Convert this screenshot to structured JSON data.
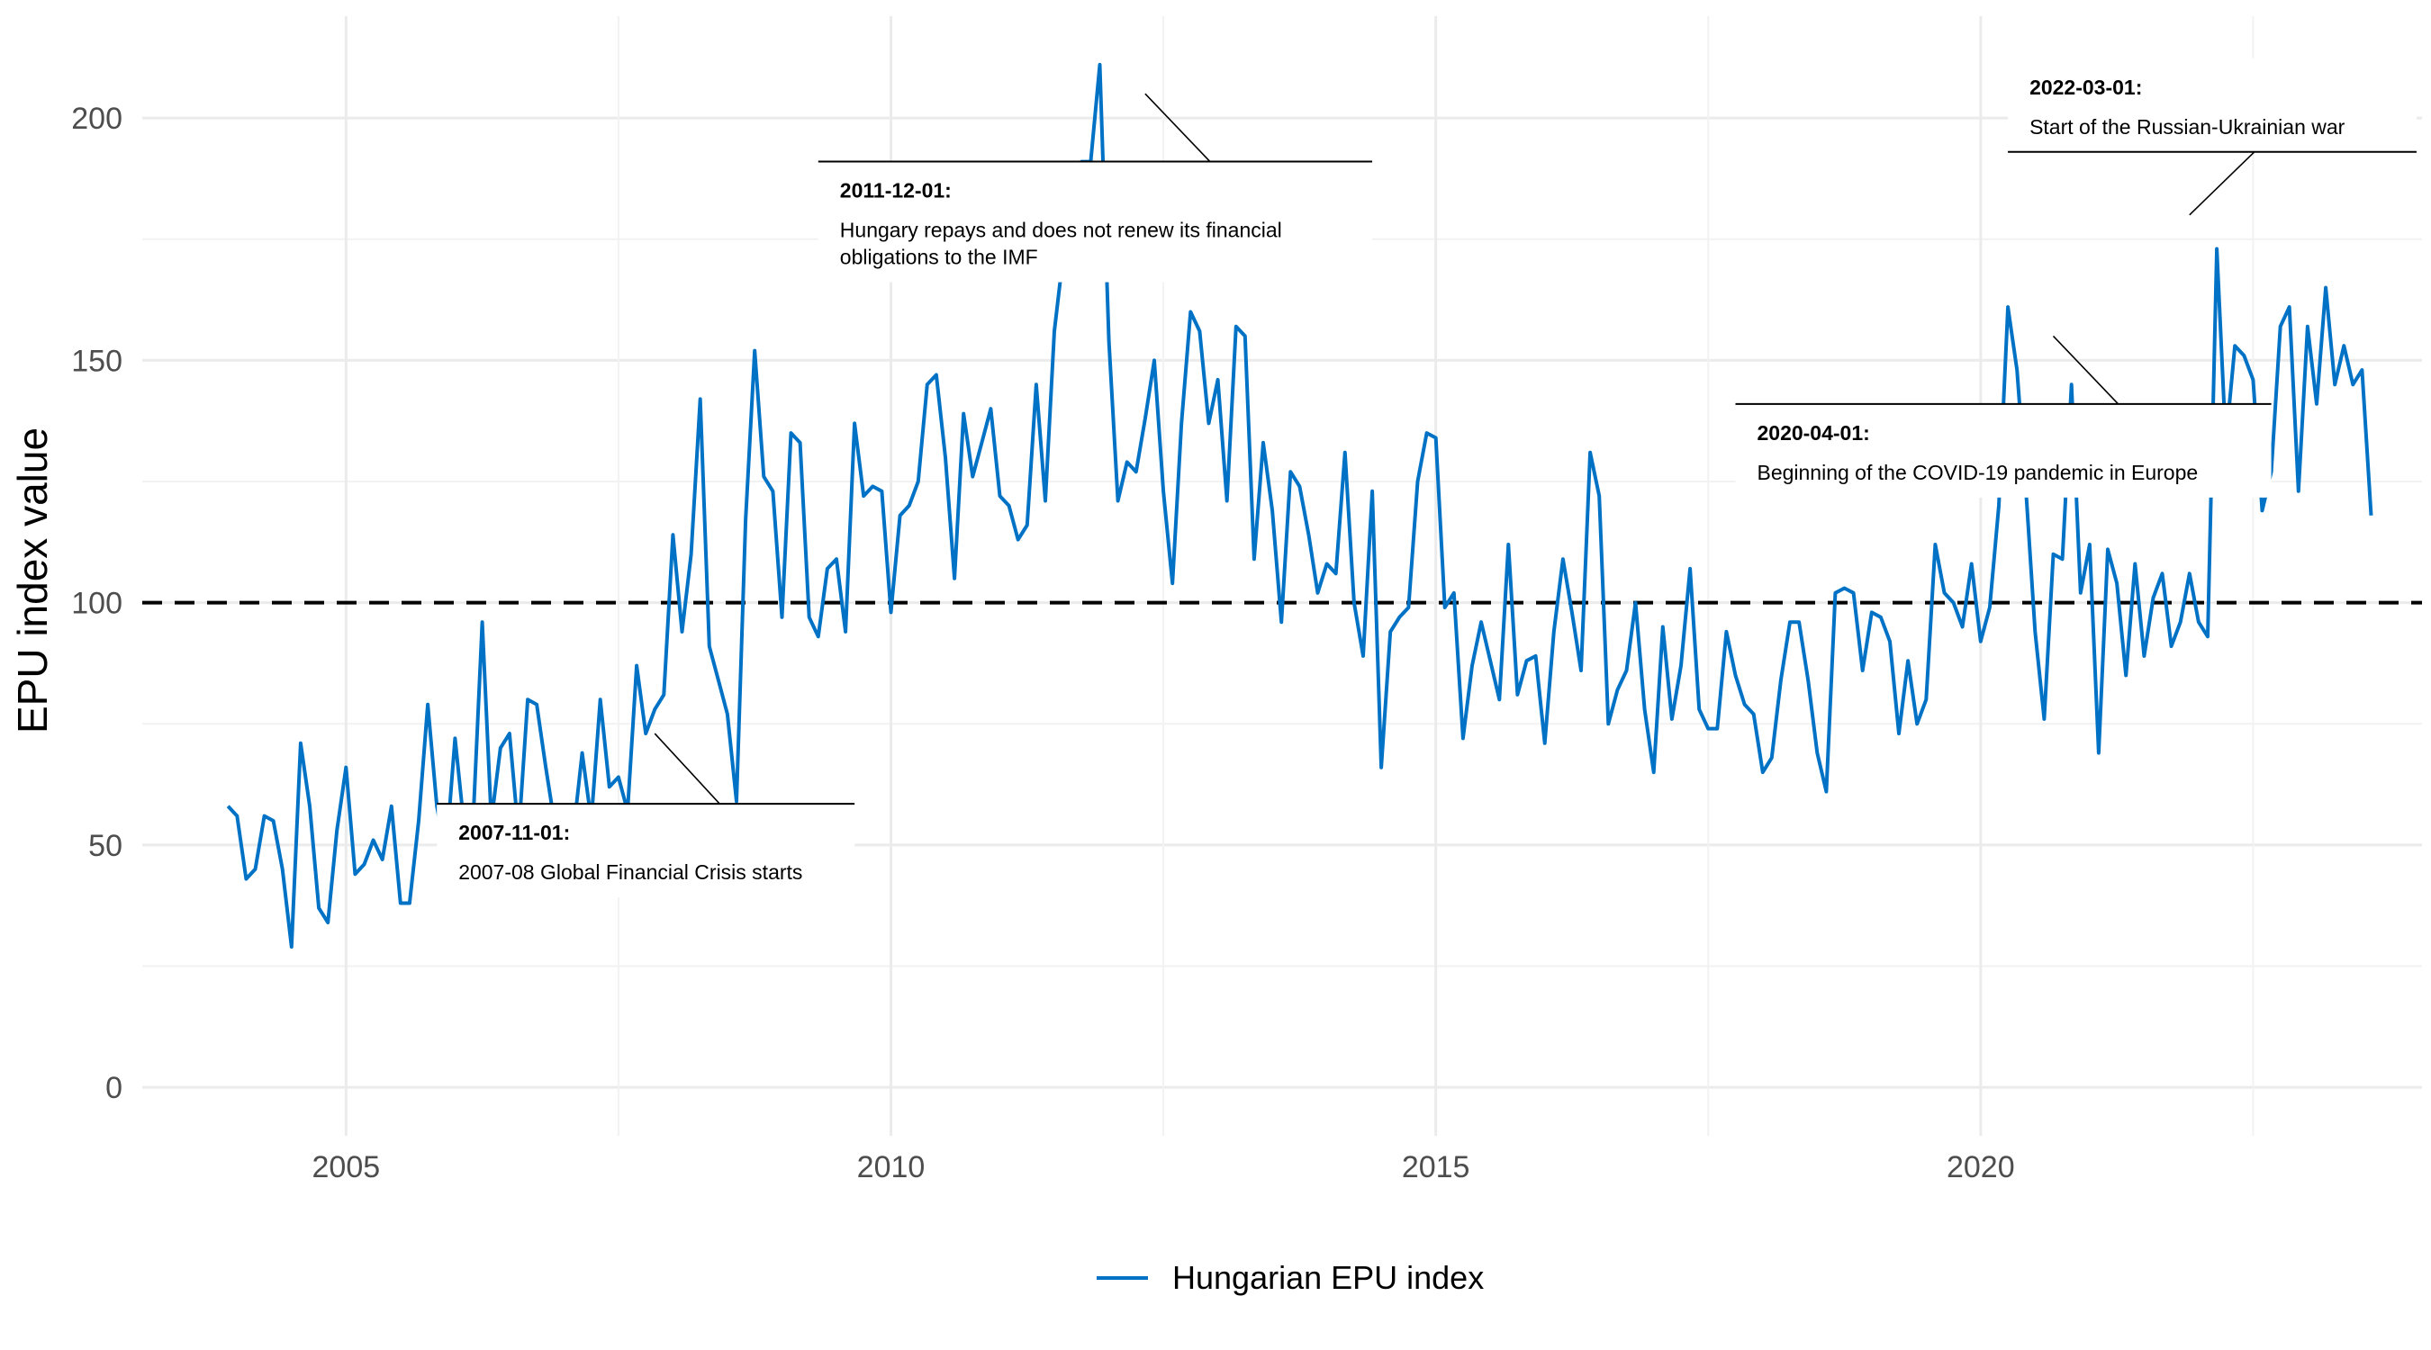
{
  "chart_data": {
    "type": "line",
    "xlabel": "",
    "ylabel": "EPU index value",
    "xlim": [
      2003.13,
      2024.05
    ],
    "ylim": [
      -10,
      221
    ],
    "x_ticks": [
      2005,
      2010,
      2015,
      2020
    ],
    "y_ticks": [
      0,
      50,
      100,
      150,
      200
    ],
    "grid": true,
    "reference_line": {
      "y": 100,
      "style": "dashed",
      "color": "#000000"
    },
    "legend": {
      "position": "bottom",
      "entries": [
        "Hungarian EPU index"
      ]
    },
    "series": [
      {
        "name": "Hungarian EPU index",
        "color": "#0072c6",
        "points": [
          [
            "2003-12",
            58
          ],
          [
            "2004-01",
            56
          ],
          [
            "2004-02",
            43
          ],
          [
            "2004-03",
            45
          ],
          [
            "2004-04",
            56
          ],
          [
            "2004-05",
            55
          ],
          [
            "2004-06",
            45
          ],
          [
            "2004-07",
            29
          ],
          [
            "2004-08",
            71
          ],
          [
            "2004-09",
            58
          ],
          [
            "2004-10",
            37
          ],
          [
            "2004-11",
            34
          ],
          [
            "2004-12",
            53
          ],
          [
            "2005-01",
            66
          ],
          [
            "2005-02",
            44
          ],
          [
            "2005-03",
            46
          ],
          [
            "2005-04",
            51
          ],
          [
            "2005-05",
            47
          ],
          [
            "2005-06",
            58
          ],
          [
            "2005-07",
            38
          ],
          [
            "2005-08",
            38
          ],
          [
            "2005-09",
            55
          ],
          [
            "2005-10",
            79
          ],
          [
            "2005-11",
            58
          ],
          [
            "2005-12",
            48
          ],
          [
            "2006-01",
            72
          ],
          [
            "2006-02",
            54
          ],
          [
            "2006-03",
            55
          ],
          [
            "2006-04",
            96
          ],
          [
            "2006-05",
            55
          ],
          [
            "2006-06",
            70
          ],
          [
            "2006-07",
            73
          ],
          [
            "2006-08",
            52
          ],
          [
            "2006-09",
            80
          ],
          [
            "2006-10",
            79
          ],
          [
            "2006-11",
            66
          ],
          [
            "2006-12",
            54
          ],
          [
            "2007-01",
            50
          ],
          [
            "2007-02",
            52
          ],
          [
            "2007-03",
            69
          ],
          [
            "2007-04",
            55
          ],
          [
            "2007-05",
            80
          ],
          [
            "2007-06",
            62
          ],
          [
            "2007-07",
            64
          ],
          [
            "2007-08",
            57
          ],
          [
            "2007-09",
            87
          ],
          [
            "2007-10",
            73
          ],
          [
            "2007-11",
            78
          ],
          [
            "2007-12",
            81
          ],
          [
            "2008-01",
            114
          ],
          [
            "2008-02",
            94
          ],
          [
            "2008-03",
            110
          ],
          [
            "2008-04",
            142
          ],
          [
            "2008-05",
            91
          ],
          [
            "2008-06",
            84
          ],
          [
            "2008-07",
            77
          ],
          [
            "2008-08",
            59
          ],
          [
            "2008-09",
            117
          ],
          [
            "2008-10",
            152
          ],
          [
            "2008-11",
            126
          ],
          [
            "2008-12",
            123
          ],
          [
            "2009-01",
            97
          ],
          [
            "2009-02",
            135
          ],
          [
            "2009-03",
            133
          ],
          [
            "2009-04",
            97
          ],
          [
            "2009-05",
            93
          ],
          [
            "2009-06",
            107
          ],
          [
            "2009-07",
            109
          ],
          [
            "2009-08",
            94
          ],
          [
            "2009-09",
            137
          ],
          [
            "2009-10",
            122
          ],
          [
            "2009-11",
            124
          ],
          [
            "2009-12",
            123
          ],
          [
            "2010-01",
            98
          ],
          [
            "2010-02",
            118
          ],
          [
            "2010-03",
            120
          ],
          [
            "2010-04",
            125
          ],
          [
            "2010-05",
            145
          ],
          [
            "2010-06",
            147
          ],
          [
            "2010-07",
            130
          ],
          [
            "2010-08",
            105
          ],
          [
            "2010-09",
            139
          ],
          [
            "2010-10",
            126
          ],
          [
            "2010-11",
            133
          ],
          [
            "2010-12",
            140
          ],
          [
            "2011-01",
            122
          ],
          [
            "2011-02",
            120
          ],
          [
            "2011-03",
            113
          ],
          [
            "2011-04",
            116
          ],
          [
            "2011-05",
            145
          ],
          [
            "2011-06",
            121
          ],
          [
            "2011-07",
            156
          ],
          [
            "2011-08",
            172
          ],
          [
            "2011-09",
            185
          ],
          [
            "2011-10",
            191
          ],
          [
            "2011-11",
            191
          ],
          [
            "2011-12",
            211
          ],
          [
            "2012-01",
            154
          ],
          [
            "2012-02",
            121
          ],
          [
            "2012-03",
            129
          ],
          [
            "2012-04",
            127
          ],
          [
            "2012-05",
            138
          ],
          [
            "2012-06",
            150
          ],
          [
            "2012-07",
            123
          ],
          [
            "2012-08",
            104
          ],
          [
            "2012-09",
            137
          ],
          [
            "2012-10",
            160
          ],
          [
            "2012-11",
            156
          ],
          [
            "2012-12",
            137
          ],
          [
            "2013-01",
            146
          ],
          [
            "2013-02",
            121
          ],
          [
            "2013-03",
            157
          ],
          [
            "2013-04",
            155
          ],
          [
            "2013-05",
            109
          ],
          [
            "2013-06",
            133
          ],
          [
            "2013-07",
            119
          ],
          [
            "2013-08",
            96
          ],
          [
            "2013-09",
            127
          ],
          [
            "2013-10",
            124
          ],
          [
            "2013-11",
            114
          ],
          [
            "2013-12",
            102
          ],
          [
            "2014-01",
            108
          ],
          [
            "2014-02",
            106
          ],
          [
            "2014-03",
            131
          ],
          [
            "2014-04",
            100
          ],
          [
            "2014-05",
            89
          ],
          [
            "2014-06",
            123
          ],
          [
            "2014-07",
            66
          ],
          [
            "2014-08",
            94
          ],
          [
            "2014-09",
            97
          ],
          [
            "2014-10",
            99
          ],
          [
            "2014-11",
            125
          ],
          [
            "2014-12",
            135
          ],
          [
            "2015-01",
            134
          ],
          [
            "2015-02",
            99
          ],
          [
            "2015-03",
            102
          ],
          [
            "2015-04",
            72
          ],
          [
            "2015-05",
            87
          ],
          [
            "2015-06",
            96
          ],
          [
            "2015-07",
            88
          ],
          [
            "2015-08",
            80
          ],
          [
            "2015-09",
            112
          ],
          [
            "2015-10",
            81
          ],
          [
            "2015-11",
            88
          ],
          [
            "2015-12",
            89
          ],
          [
            "2016-01",
            71
          ],
          [
            "2016-02",
            94
          ],
          [
            "2016-03",
            109
          ],
          [
            "2016-04",
            98
          ],
          [
            "2016-05",
            86
          ],
          [
            "2016-06",
            131
          ],
          [
            "2016-07",
            122
          ],
          [
            "2016-08",
            75
          ],
          [
            "2016-09",
            82
          ],
          [
            "2016-10",
            86
          ],
          [
            "2016-11",
            100
          ],
          [
            "2016-12",
            78
          ],
          [
            "2017-01",
            65
          ],
          [
            "2017-02",
            95
          ],
          [
            "2017-03",
            76
          ],
          [
            "2017-04",
            87
          ],
          [
            "2017-05",
            107
          ],
          [
            "2017-06",
            78
          ],
          [
            "2017-07",
            74
          ],
          [
            "2017-08",
            74
          ],
          [
            "2017-09",
            94
          ],
          [
            "2017-10",
            85
          ],
          [
            "2017-11",
            79
          ],
          [
            "2017-12",
            77
          ],
          [
            "2018-01",
            65
          ],
          [
            "2018-02",
            68
          ],
          [
            "2018-03",
            84
          ],
          [
            "2018-04",
            96
          ],
          [
            "2018-05",
            96
          ],
          [
            "2018-06",
            84
          ],
          [
            "2018-07",
            69
          ],
          [
            "2018-08",
            61
          ],
          [
            "2018-09",
            102
          ],
          [
            "2018-10",
            103
          ],
          [
            "2018-11",
            102
          ],
          [
            "2018-12",
            86
          ],
          [
            "2019-01",
            98
          ],
          [
            "2019-02",
            97
          ],
          [
            "2019-03",
            92
          ],
          [
            "2019-04",
            73
          ],
          [
            "2019-05",
            88
          ],
          [
            "2019-06",
            75
          ],
          [
            "2019-07",
            80
          ],
          [
            "2019-08",
            112
          ],
          [
            "2019-09",
            102
          ],
          [
            "2019-10",
            100
          ],
          [
            "2019-11",
            95
          ],
          [
            "2019-12",
            108
          ],
          [
            "2020-01",
            92
          ],
          [
            "2020-02",
            99
          ],
          [
            "2020-03",
            120
          ],
          [
            "2020-04",
            161
          ],
          [
            "2020-05",
            148
          ],
          [
            "2020-06",
            123
          ],
          [
            "2020-07",
            94
          ],
          [
            "2020-08",
            76
          ],
          [
            "2020-09",
            110
          ],
          [
            "2020-10",
            109
          ],
          [
            "2020-11",
            145
          ],
          [
            "2020-12",
            102
          ],
          [
            "2021-01",
            112
          ],
          [
            "2021-02",
            69
          ],
          [
            "2021-03",
            111
          ],
          [
            "2021-04",
            104
          ],
          [
            "2021-05",
            85
          ],
          [
            "2021-06",
            108
          ],
          [
            "2021-07",
            89
          ],
          [
            "2021-08",
            101
          ],
          [
            "2021-09",
            106
          ],
          [
            "2021-10",
            91
          ],
          [
            "2021-11",
            96
          ],
          [
            "2021-12",
            106
          ],
          [
            "2022-01",
            96
          ],
          [
            "2022-02",
            93
          ],
          [
            "2022-03",
            173
          ],
          [
            "2022-04",
            133
          ],
          [
            "2022-05",
            153
          ],
          [
            "2022-06",
            151
          ],
          [
            "2022-07",
            146
          ],
          [
            "2022-08",
            119
          ],
          [
            "2022-09",
            127
          ],
          [
            "2022-10",
            157
          ],
          [
            "2022-11",
            161
          ],
          [
            "2022-12",
            123
          ],
          [
            "2023-01",
            157
          ],
          [
            "2023-02",
            141
          ],
          [
            "2023-03",
            165
          ],
          [
            "2023-04",
            145
          ],
          [
            "2023-05",
            153
          ],
          [
            "2023-06",
            145
          ],
          [
            "2023-07",
            148
          ],
          [
            "2023-08",
            118
          ]
        ]
      }
    ],
    "annotations": [
      {
        "date_label": "2007-11-01:",
        "text_lines": [
          "2007-08 Global Financial Crisis starts"
        ],
        "x": "2007-11",
        "y": 73,
        "box_x": "2005-11",
        "box_y": 58.5,
        "box_x_end": "2009-09",
        "anchor": "top-left"
      },
      {
        "date_label": "2011-12-01:",
        "text_lines": [
          "Hungary repays and does not renew its financial",
          "obligations to the IMF"
        ],
        "x": "2012-05",
        "y": 205,
        "box_x": "2009-05",
        "box_y": 191,
        "box_x_end": "2014-06",
        "anchor": "top-left"
      },
      {
        "date_label": "2020-04-01:",
        "text_lines": [
          "Beginning of the COVID-19 pandemic in Europe"
        ],
        "x": "2020-09",
        "y": 155,
        "box_x": "2017-10",
        "box_y": 141,
        "box_x_end": "2022-09",
        "anchor": "top-left"
      },
      {
        "date_label": "2022-03-01:",
        "text_lines": [
          "Start of the Russian-Ukrainian war"
        ],
        "x": "2021-12",
        "y": 180,
        "box_x": "2020-04",
        "box_y": 193,
        "box_x_end": "2024-01",
        "anchor": "bottom-left"
      }
    ]
  }
}
